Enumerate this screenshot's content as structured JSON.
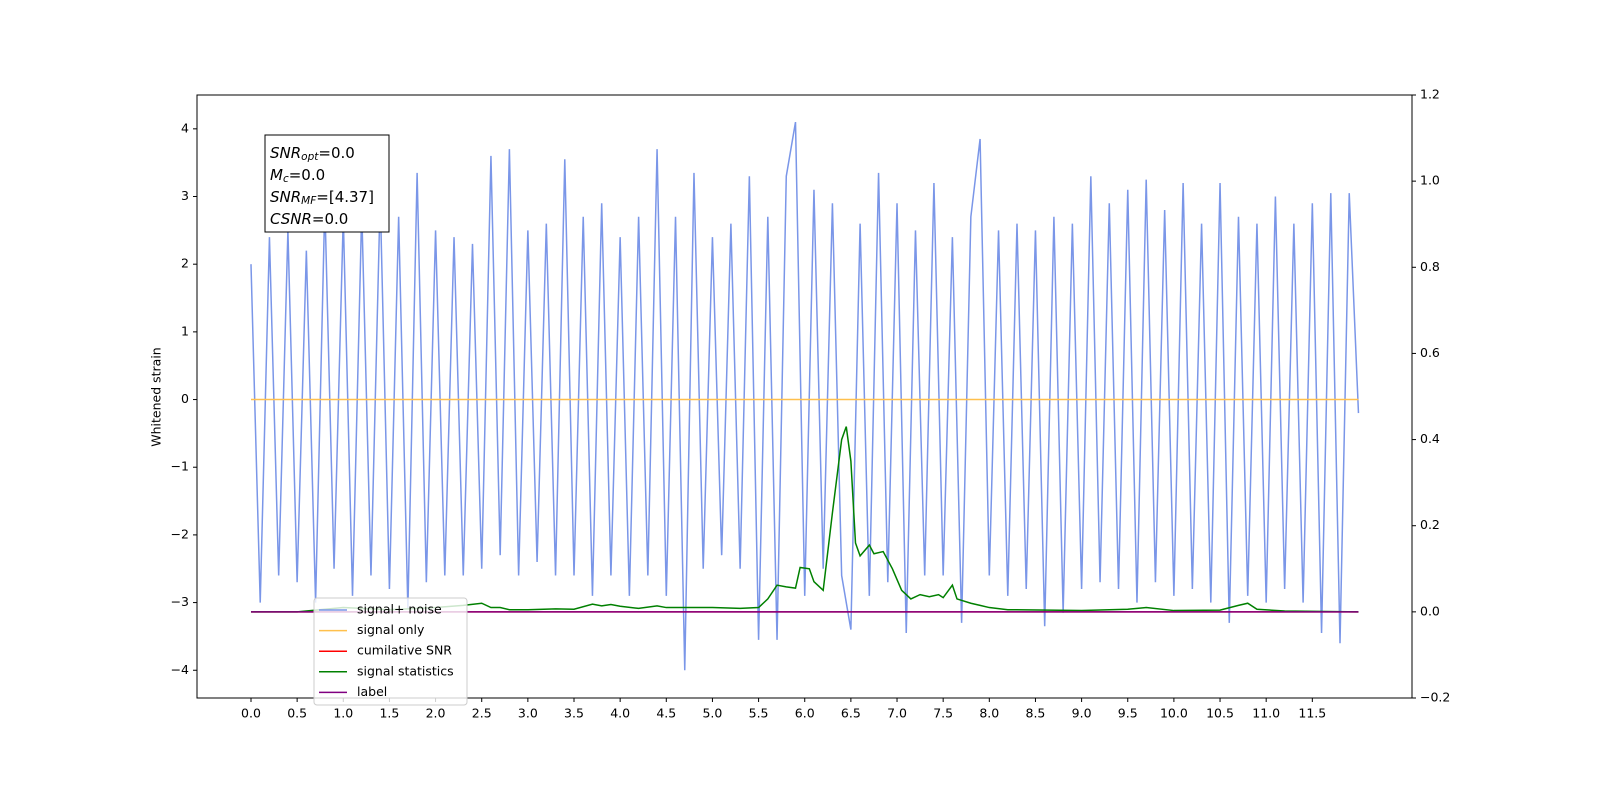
{
  "chart_data": {
    "type": "line",
    "ylabel": "Whitened strain",
    "xlim": [
      -0.585,
      12.58
    ],
    "ylim": [
      -4.41,
      4.5
    ],
    "y2lim": [
      -0.2,
      1.2
    ],
    "xticks": [
      {
        "value": 0,
        "label": "0.0"
      },
      0.5,
      {
        "value": 1,
        "label": "1.0"
      },
      1.5,
      {
        "value": 2,
        "label": "2.0"
      },
      2.5,
      {
        "value": 3,
        "label": "3.0"
      },
      3.5,
      {
        "value": 4,
        "label": "4.0"
      },
      4.5,
      {
        "value": 5,
        "label": "5.0"
      },
      5.5,
      {
        "value": 6,
        "label": "6.0"
      },
      6.5,
      {
        "value": 7,
        "label": "7.0"
      },
      7.5,
      {
        "value": 8,
        "label": "8.0"
      },
      8.5,
      {
        "value": 9,
        "label": "9.0"
      },
      9.5,
      {
        "value": 10,
        "label": "10.0"
      },
      10.5,
      {
        "value": 11,
        "label": "11.0"
      },
      11.5
    ],
    "yticks": [
      {
        "value": -4,
        "label": "−4"
      },
      {
        "value": -3,
        "label": "−3"
      },
      {
        "value": -2,
        "label": "−2"
      },
      {
        "value": -1,
        "label": "−1"
      },
      0,
      1,
      2,
      3,
      4
    ],
    "y2ticks": [
      {
        "value": -0.2,
        "label": "−0.2"
      },
      {
        "value": 0,
        "label": "0.0"
      },
      0.2,
      0.4,
      0.6,
      0.8,
      {
        "value": 1,
        "label": "1.0"
      },
      1.2
    ],
    "legend": "lower left",
    "annotations": [
      {
        "base": "SNR",
        "sub": "opt",
        "text": "=0.0"
      },
      {
        "base": "M",
        "sub": "c",
        "text": "=0.0"
      },
      {
        "base": "SNR",
        "sub": "MF",
        "text": "=[4.37]"
      },
      {
        "base": "CSNR",
        "text": "=0.0"
      }
    ],
    "series": [
      {
        "name": "signal+ noise",
        "color": "#7a96e8",
        "axis": "y",
        "x": [
          0,
          0.1,
          0.2,
          0.3,
          0.4,
          0.5,
          0.6,
          0.7,
          0.8,
          0.9,
          1,
          1.1,
          1.2,
          1.3,
          1.4,
          1.5,
          1.6,
          1.7,
          1.8,
          1.9,
          2,
          2.1,
          2.2,
          2.3,
          2.4,
          2.5,
          2.6,
          2.7,
          2.8,
          2.9,
          3,
          3.1,
          3.2,
          3.3,
          3.4,
          3.5,
          3.6,
          3.7,
          3.8,
          3.9,
          4,
          4.1,
          4.2,
          4.3,
          4.4,
          4.5,
          4.6,
          4.7,
          4.8,
          4.9,
          5,
          5.1,
          5.2,
          5.3,
          5.4,
          5.5,
          5.6,
          5.7,
          5.8,
          5.9,
          6,
          6.1,
          6.2,
          6.3,
          6.4,
          6.5,
          6.6,
          6.7,
          6.8,
          6.9,
          7,
          7.1,
          7.2,
          7.3,
          7.4,
          7.5,
          7.6,
          7.7,
          7.8,
          7.9,
          8,
          8.1,
          8.2,
          8.3,
          8.4,
          8.5,
          8.6,
          8.7,
          8.8,
          8.9,
          9,
          9.1,
          9.2,
          9.3,
          9.4,
          9.5,
          9.6,
          9.7,
          9.8,
          9.9,
          10,
          10.1,
          10.2,
          10.3,
          10.4,
          10.5,
          10.6,
          10.7,
          10.8,
          10.9,
          11,
          11.1,
          11.2,
          11.3,
          11.4,
          11.5,
          11.6,
          11.7,
          11.8,
          11.9,
          12
        ],
        "values": [
          2.0,
          -3.0,
          2.4,
          -2.6,
          2.5,
          -2.7,
          2.2,
          -3.0,
          2.9,
          -2.5,
          2.7,
          -2.9,
          2.8,
          -2.6,
          3.0,
          -2.8,
          2.7,
          -3.1,
          3.35,
          -2.7,
          2.5,
          -2.6,
          2.4,
          -2.6,
          2.3,
          -2.5,
          3.6,
          -2.3,
          3.7,
          -2.6,
          2.5,
          -2.4,
          2.6,
          -2.6,
          3.55,
          -2.6,
          2.7,
          -2.9,
          2.9,
          -2.6,
          2.4,
          -2.9,
          2.7,
          -2.6,
          3.7,
          -2.9,
          2.7,
          -4.0,
          3.35,
          -2.5,
          2.4,
          -2.3,
          2.6,
          -2.5,
          3.3,
          -3.55,
          2.7,
          -3.55,
          3.3,
          4.1,
          -2.9,
          3.1,
          -2.5,
          2.9,
          -2.6,
          -3.4,
          2.6,
          -2.9,
          3.35,
          -2.7,
          2.9,
          -3.45,
          2.5,
          -2.6,
          3.2,
          -2.6,
          2.4,
          -3.3,
          2.7,
          3.85,
          -2.6,
          2.5,
          -2.9,
          2.6,
          -2.8,
          2.5,
          -3.35,
          2.7,
          -3.15,
          2.6,
          -2.8,
          3.3,
          -2.7,
          2.9,
          -2.8,
          3.1,
          -3.0,
          3.25,
          -2.7,
          2.8,
          -2.9,
          3.2,
          -2.8,
          2.6,
          -3.0,
          3.2,
          -3.3,
          2.7,
          -2.9,
          2.6,
          -3.0,
          3.0,
          -2.8,
          2.6,
          -3.0,
          2.9,
          -3.45,
          3.05,
          -3.6,
          3.05,
          -0.2
        ]
      },
      {
        "name": "signal only",
        "color": "#ffc04d",
        "axis": "y",
        "x": [
          0,
          12
        ],
        "values": [
          0,
          0
        ]
      },
      {
        "name": "cumilative SNR",
        "color": "#ff0000",
        "axis": "y2",
        "x": [
          0,
          12
        ],
        "values": [
          0,
          0
        ]
      },
      {
        "name": "signal statistics",
        "color": "#008000",
        "axis": "y2",
        "x": [
          0,
          0.5,
          1,
          1.5,
          2,
          2.3,
          2.5,
          2.6,
          2.7,
          2.8,
          3,
          3.3,
          3.5,
          3.7,
          3.8,
          3.9,
          4,
          4.2,
          4.4,
          4.5,
          5,
          5.3,
          5.5,
          5.6,
          5.7,
          5.8,
          5.9,
          5.95,
          6.05,
          6.1,
          6.2,
          6.3,
          6.4,
          6.45,
          6.5,
          6.55,
          6.6,
          6.7,
          6.75,
          6.85,
          6.95,
          7.05,
          7.15,
          7.25,
          7.35,
          7.45,
          7.5,
          7.6,
          7.65,
          7.8,
          7.9,
          8,
          8.2,
          9,
          9.3,
          9.5,
          9.7,
          10,
          10.5,
          10.7,
          10.8,
          10.9,
          11.2,
          12
        ],
        "values": [
          0,
          0,
          0.01,
          0.005,
          0.01,
          0.015,
          0.02,
          0.01,
          0.01,
          0.005,
          0.005,
          0.007,
          0.006,
          0.018,
          0.014,
          0.017,
          0.013,
          0.008,
          0.014,
          0.01,
          0.01,
          0.008,
          0.01,
          0.03,
          0.062,
          0.058,
          0.055,
          0.103,
          0.1,
          0.07,
          0.05,
          0.23,
          0.4,
          0.43,
          0.35,
          0.16,
          0.13,
          0.155,
          0.135,
          0.14,
          0.1,
          0.05,
          0.03,
          0.04,
          0.035,
          0.04,
          0.033,
          0.062,
          0.03,
          0.02,
          0.015,
          0.01,
          0.005,
          0.003,
          0.005,
          0.006,
          0.01,
          0.003,
          0.004,
          0.015,
          0.02,
          0.006,
          0.002,
          0
        ]
      },
      {
        "name": "label",
        "color": "#800080",
        "axis": "y2",
        "x": [
          0,
          12
        ],
        "values": [
          0,
          0
        ]
      }
    ]
  }
}
